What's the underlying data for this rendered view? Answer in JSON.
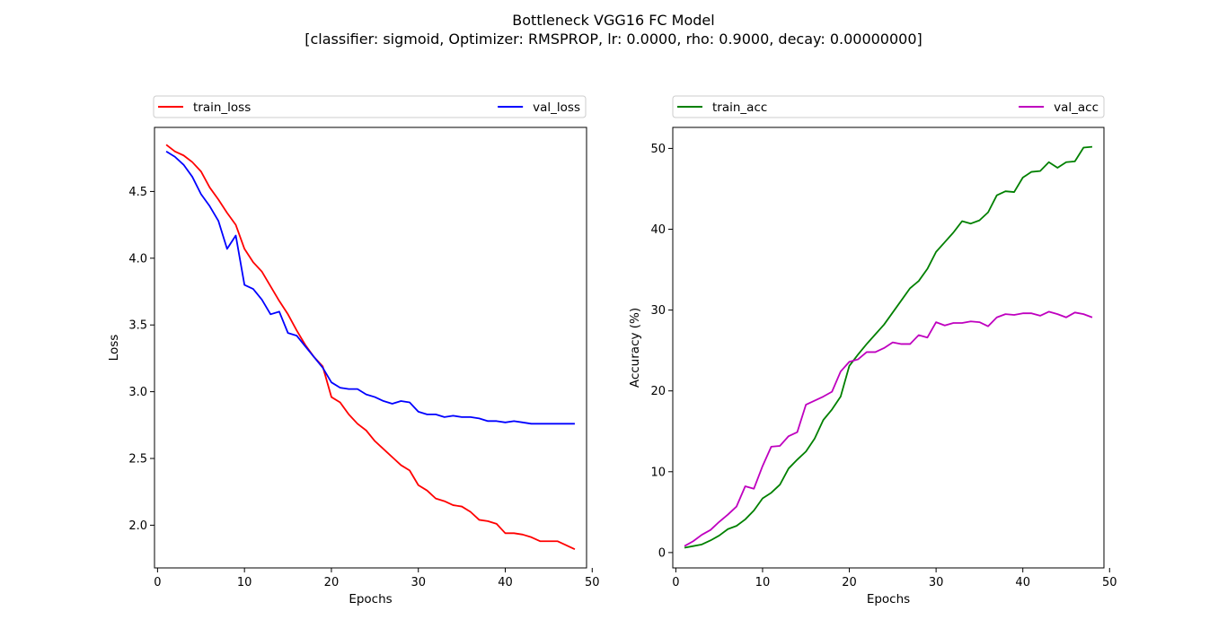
{
  "figure": {
    "title_line1": "Bottleneck VGG16 FC Model",
    "title_line2": "[classifier: sigmoid, Optimizer: RMSPROP, lr: 0.0000, rho: 0.9000, decay: 0.00000000]"
  },
  "chart_data": [
    {
      "id": "loss",
      "type": "line",
      "xlabel": "Epochs",
      "ylabel": "Loss",
      "xlim": [
        -0.35,
        49.35
      ],
      "ylim": [
        1.68,
        4.98
      ],
      "xticks": [
        0,
        10,
        20,
        30,
        40,
        50
      ],
      "yticks": [
        2.0,
        2.5,
        3.0,
        3.5,
        4.0,
        4.5
      ],
      "ytick_labels": [
        "2.0",
        "2.5",
        "3.0",
        "3.5",
        "4.0",
        "4.5"
      ],
      "legend": "top, above plot, horizontal",
      "grid": false,
      "x": [
        1,
        2,
        3,
        4,
        5,
        6,
        7,
        8,
        9,
        10,
        11,
        12,
        13,
        14,
        15,
        16,
        17,
        18,
        19,
        20,
        21,
        22,
        23,
        24,
        25,
        26,
        27,
        28,
        29,
        30,
        31,
        32,
        33,
        34,
        35,
        36,
        37,
        38,
        39,
        40,
        41,
        42,
        43,
        44,
        45,
        46,
        47,
        48
      ],
      "series": [
        {
          "name": "train_loss",
          "color": "#ff0000",
          "values": [
            4.85,
            4.8,
            4.77,
            4.72,
            4.65,
            4.53,
            4.44,
            4.34,
            4.25,
            4.07,
            3.97,
            3.9,
            3.79,
            3.68,
            3.58,
            3.46,
            3.35,
            3.26,
            3.19,
            2.96,
            2.92,
            2.83,
            2.76,
            2.71,
            2.63,
            2.57,
            2.51,
            2.45,
            2.41,
            2.3,
            2.26,
            2.2,
            2.18,
            2.15,
            2.14,
            2.1,
            2.04,
            2.03,
            2.01,
            1.94,
            1.94,
            1.93,
            1.91,
            1.88,
            1.88,
            1.88,
            1.85,
            1.82
          ]
        },
        {
          "name": "val_loss",
          "color": "#0000ff",
          "values": [
            4.8,
            4.76,
            4.7,
            4.61,
            4.48,
            4.39,
            4.28,
            4.07,
            4.17,
            3.8,
            3.77,
            3.69,
            3.58,
            3.6,
            3.44,
            3.42,
            3.34,
            3.26,
            3.18,
            3.07,
            3.03,
            3.02,
            3.02,
            2.98,
            2.96,
            2.93,
            2.91,
            2.93,
            2.92,
            2.85,
            2.83,
            2.83,
            2.81,
            2.82,
            2.81,
            2.81,
            2.8,
            2.78,
            2.78,
            2.77,
            2.78,
            2.77,
            2.76,
            2.76,
            2.76,
            2.76,
            2.76,
            2.76
          ]
        }
      ]
    },
    {
      "id": "acc",
      "type": "line",
      "xlabel": "Epochs",
      "ylabel": "Accuracy (%)",
      "xlim": [
        -0.35,
        49.35
      ],
      "ylim": [
        -1.9,
        52.6
      ],
      "xticks": [
        0,
        10,
        20,
        30,
        40,
        50
      ],
      "yticks": [
        0,
        10,
        20,
        30,
        40,
        50
      ],
      "ytick_labels": [
        "0",
        "10",
        "20",
        "30",
        "40",
        "50"
      ],
      "legend": "top, above plot, horizontal",
      "grid": false,
      "x": [
        1,
        2,
        3,
        4,
        5,
        6,
        7,
        8,
        9,
        10,
        11,
        12,
        13,
        14,
        15,
        16,
        17,
        18,
        19,
        20,
        21,
        22,
        23,
        24,
        25,
        26,
        27,
        28,
        29,
        30,
        31,
        32,
        33,
        34,
        35,
        36,
        37,
        38,
        39,
        40,
        41,
        42,
        43,
        44,
        45,
        46,
        47,
        48
      ],
      "series": [
        {
          "name": "train_acc",
          "color": "#008000",
          "values": [
            0.6,
            0.8,
            1.0,
            1.5,
            2.1,
            2.9,
            3.3,
            4.1,
            5.2,
            6.7,
            7.4,
            8.4,
            10.4,
            11.5,
            12.5,
            14.1,
            16.4,
            17.7,
            19.3,
            23.1,
            24.5,
            25.8,
            27.0,
            28.2,
            29.7,
            31.2,
            32.7,
            33.6,
            35.1,
            37.2,
            38.4,
            39.6,
            41.0,
            40.7,
            41.1,
            42.1,
            44.2,
            44.7,
            44.6,
            46.4,
            47.1,
            47.2,
            48.3,
            47.6,
            48.3,
            48.4,
            50.1,
            50.2
          ]
        },
        {
          "name": "val_acc",
          "color": "#bf00bf",
          "values": [
            0.8,
            1.4,
            2.2,
            2.8,
            3.8,
            4.7,
            5.7,
            8.2,
            7.9,
            10.7,
            13.1,
            13.2,
            14.4,
            14.9,
            18.3,
            18.8,
            19.3,
            19.9,
            22.4,
            23.6,
            23.9,
            24.8,
            24.8,
            25.3,
            26.0,
            25.8,
            25.8,
            26.9,
            26.6,
            28.5,
            28.1,
            28.4,
            28.4,
            28.6,
            28.5,
            28.0,
            29.1,
            29.5,
            29.4,
            29.6,
            29.6,
            29.3,
            29.8,
            29.5,
            29.1,
            29.7,
            29.5,
            29.1
          ]
        }
      ]
    }
  ]
}
